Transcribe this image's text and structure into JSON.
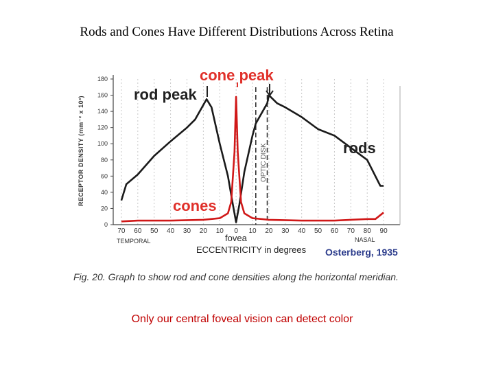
{
  "slide": {
    "title": "Rods and Cones Have Different Distributions Across Retina",
    "caption": "Fig. 20. Graph to show rod and cone densities along the horizontal meridian.",
    "note": "Only our central foveal vision can detect color"
  },
  "chart_data": {
    "type": "line",
    "title": "",
    "ylabel": "RECEPTOR DENSITY (mm⁻² x 10³)",
    "xlabel": "ECCENTRICITY in degrees",
    "ylim": [
      0,
      180
    ],
    "yticks": [
      0,
      20,
      40,
      60,
      80,
      100,
      120,
      140,
      160,
      180
    ],
    "xticks": [
      -70,
      -60,
      -50,
      -40,
      -30,
      -20,
      -10,
      0,
      10,
      20,
      30,
      40,
      50,
      60,
      70,
      80,
      90
    ],
    "xtick_labels": [
      "70",
      "60",
      "50",
      "40",
      "30",
      "20",
      "10",
      "0",
      "10",
      "20",
      "30",
      "40",
      "50",
      "60",
      "70",
      "80",
      "90"
    ],
    "xlim": [
      -75,
      100
    ],
    "left_region_label": "TEMPORAL",
    "right_region_label": "NASAL",
    "fovea_label": "fovea",
    "source": "Osterberg, 1935",
    "optic_disk_label": "OPTIC DISK",
    "optic_disk_range": [
      12,
      19
    ],
    "annotations": {
      "rod_peak": "rod peak",
      "cone_peak": "cone peak",
      "rods": "rods",
      "cones": "cones"
    },
    "series": [
      {
        "name": "rods",
        "color": "#1a1a1a",
        "x": [
          -70,
          -67,
          -60,
          -50,
          -40,
          -30,
          -25,
          -20,
          -18,
          -15,
          -10,
          -5,
          -2,
          0,
          2,
          5,
          10,
          12,
          19,
          20,
          25,
          30,
          40,
          50,
          60,
          70,
          80,
          88,
          90
        ],
        "y": [
          30,
          50,
          62,
          85,
          103,
          120,
          130,
          148,
          155,
          145,
          100,
          60,
          25,
          3,
          25,
          65,
          110,
          125,
          150,
          160,
          150,
          145,
          133,
          118,
          110,
          95,
          80,
          48,
          48
        ]
      },
      {
        "name": "cones",
        "color": "#d01818",
        "x": [
          -70,
          -60,
          -40,
          -20,
          -10,
          -5,
          -3,
          -1,
          0,
          1,
          3,
          5,
          10,
          20,
          40,
          60,
          80,
          85,
          90
        ],
        "y": [
          4,
          5,
          5,
          6,
          8,
          14,
          28,
          90,
          158,
          90,
          28,
          14,
          8,
          6,
          5,
          5,
          7,
          7,
          15
        ]
      }
    ]
  }
}
